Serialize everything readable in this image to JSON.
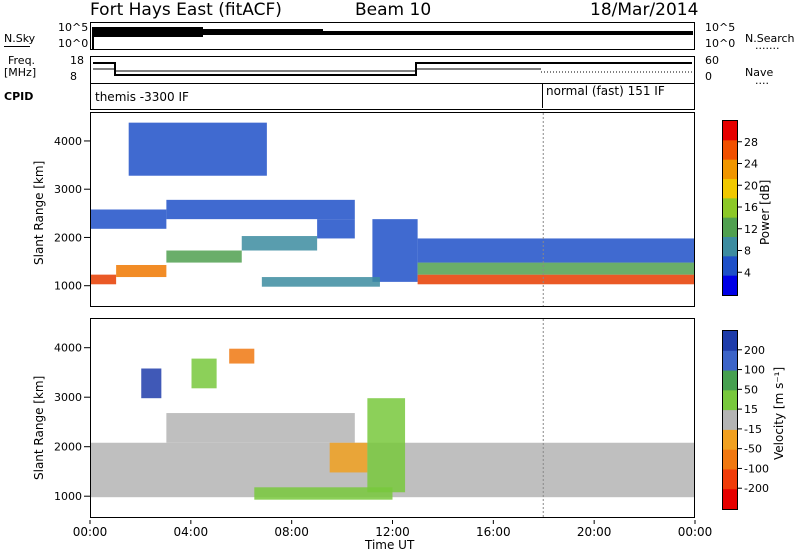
{
  "header": {
    "station": "Fort Hays East (fitACF)",
    "beam": "Beam 10",
    "date": "18/Mar/2014"
  },
  "side_labels": {
    "nsky": "N.Sky",
    "freq_line1": "Freq.",
    "freq_line2": "[MHz]",
    "cpid": "CPID",
    "nsearch": "N.Search",
    "nsearch_dots": ".......",
    "nave": "Nave",
    "nave_dots": "...."
  },
  "noise_axis": {
    "left_top": "10^5",
    "left_bottom": "10^0",
    "right_top": "10^5",
    "right_bottom": "10^0"
  },
  "freq_axis": {
    "left_top": "18",
    "left_bottom": "8",
    "right_top": "60",
    "right_bottom": "0"
  },
  "cpid": {
    "mode1": "themis -3300 IF",
    "mode2": "normal (fast) 151 IF"
  },
  "chart_data": [
    {
      "type": "heatmap",
      "panel": "power",
      "ylabel": "Slant Range [km]",
      "xlabel": "Time UT",
      "x_ticks": [
        "00:00",
        "04:00",
        "08:00",
        "12:00",
        "16:00",
        "20:00",
        "00:00"
      ],
      "xlim_hours": [
        0,
        24
      ],
      "y_ticks": [
        1000,
        2000,
        3000,
        4000
      ],
      "ylim": [
        600,
        4600
      ],
      "colorbar": {
        "label": "Power [dB]",
        "ticks": [
          4,
          8,
          12,
          16,
          20,
          24,
          28
        ],
        "colors": [
          "#0000e6",
          "#1e50c8",
          "#3c8ca0",
          "#50a050",
          "#8cc828",
          "#f0c800",
          "#f09600",
          "#f05000",
          "#e60000"
        ]
      }
    },
    {
      "type": "heatmap",
      "panel": "velocity",
      "ylabel": "Slant Range [km]",
      "xlabel": "Time UT",
      "x_ticks": [
        "00:00",
        "04:00",
        "08:00",
        "12:00",
        "16:00",
        "20:00",
        "00:00"
      ],
      "xlim_hours": [
        0,
        24
      ],
      "y_ticks": [
        1000,
        2000,
        3000,
        4000
      ],
      "ylim": [
        600,
        4600
      ],
      "colorbar": {
        "label": "Velocity [m s⁻¹]",
        "ticks": [
          200,
          100,
          50,
          15,
          -15,
          -50,
          -100,
          -200
        ],
        "colors": [
          "#1e3caa",
          "#3c64c8",
          "#46a050",
          "#78c83c",
          "#b4b4b4",
          "#f0a020",
          "#f07810",
          "#f03c0a",
          "#e60000"
        ]
      }
    }
  ],
  "bands": {
    "power": [
      {
        "t0": 0.0,
        "t1": 1.0,
        "r0": 1050,
        "r1": 1250,
        "c": "#e63c00"
      },
      {
        "t0": 1.0,
        "t1": 3.0,
        "r0": 1200,
        "r1": 1450,
        "c": "#f07800"
      },
      {
        "t0": 3.0,
        "t1": 6.0,
        "r0": 1500,
        "r1": 1750,
        "c": "#50a050"
      },
      {
        "t0": 6.0,
        "t1": 9.0,
        "r0": 1750,
        "r1": 2050,
        "c": "#3c8ca0"
      },
      {
        "t0": 9.0,
        "t1": 10.5,
        "r0": 2000,
        "r1": 2400,
        "c": "#1e50c8"
      },
      {
        "t0": 11.2,
        "t1": 13.0,
        "r0": 1100,
        "r1": 2400,
        "c": "#1e50c8"
      },
      {
        "t0": 13.0,
        "t1": 24.0,
        "r0": 1050,
        "r1": 1250,
        "c": "#e63c00"
      },
      {
        "t0": 13.0,
        "t1": 24.0,
        "r0": 1250,
        "r1": 1500,
        "c": "#50a050"
      },
      {
        "t0": 13.0,
        "t1": 24.0,
        "r0": 1500,
        "r1": 2000,
        "c": "#1e50c8"
      },
      {
        "t0": 6.8,
        "t1": 11.5,
        "r0": 1000,
        "r1": 1200,
        "c": "#3c8ca0"
      },
      {
        "t0": 0.0,
        "t1": 3.0,
        "r0": 2200,
        "r1": 2600,
        "c": "#1e50c8"
      },
      {
        "t0": 1.5,
        "t1": 7.0,
        "r0": 3300,
        "r1": 4400,
        "c": "#1e50c8"
      },
      {
        "t0": 3.0,
        "t1": 10.5,
        "r0": 2400,
        "r1": 2800,
        "c": "#1e50c8"
      }
    ],
    "velocity": [
      {
        "t0": 0.0,
        "t1": 24.0,
        "r0": 1000,
        "r1": 2100,
        "c": "#b4b4b4"
      },
      {
        "t0": 3.0,
        "t1": 10.5,
        "r0": 2100,
        "r1": 2700,
        "c": "#b4b4b4"
      },
      {
        "t0": 6.5,
        "t1": 12.0,
        "r0": 950,
        "r1": 1200,
        "c": "#78c83c"
      },
      {
        "t0": 9.5,
        "t1": 11.0,
        "r0": 1500,
        "r1": 2100,
        "c": "#f0a020"
      },
      {
        "t0": 11.0,
        "t1": 12.5,
        "r0": 1100,
        "r1": 3000,
        "c": "#78c83c"
      },
      {
        "t0": 4.0,
        "t1": 5.0,
        "r0": 3200,
        "r1": 3800,
        "c": "#78c83c"
      },
      {
        "t0": 2.0,
        "t1": 2.8,
        "r0": 3000,
        "r1": 3600,
        "c": "#1e3caa"
      },
      {
        "t0": 5.5,
        "t1": 6.5,
        "r0": 3700,
        "r1": 4000,
        "c": "#f07810"
      }
    ]
  }
}
